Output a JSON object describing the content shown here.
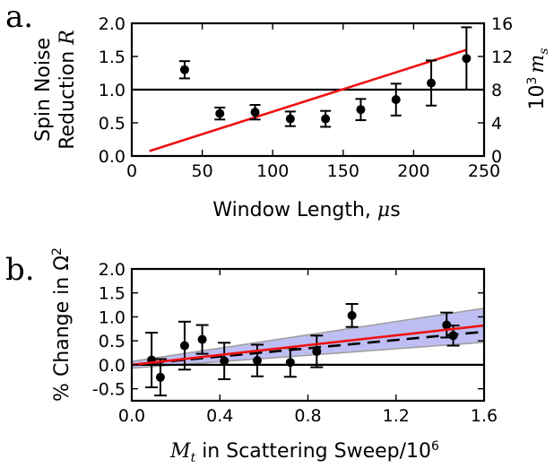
{
  "panels": {
    "a": {
      "panel_label": "a.",
      "ylabel_line1": "Spin Noise",
      "ylabel_line2_text": "Reduction ",
      "ylabel_line2_var": "R",
      "y2label_power": "10",
      "y2label_exp": "3",
      "y2label_var": "m",
      "y2label_sub": "s",
      "xlabel_text": "Window Length, ",
      "xlabel_mu": "μ",
      "xlabel_unit": "s"
    },
    "b": {
      "panel_label": "b.",
      "ylabel_text": "% Change in Ω",
      "ylabel_sup": "2",
      "xlabel_var": "M",
      "xlabel_sub": "t",
      "xlabel_text": " in Scattering Sweep/10",
      "xlabel_sup": "6"
    }
  },
  "colors": {
    "fit": "#ee1111",
    "band_fill": "#a8a8f0",
    "band_edge": "#a0a0a0",
    "points": "#000000"
  },
  "chart_data": [
    {
      "type": "scatter",
      "name": "a",
      "xlim": [
        0,
        250
      ],
      "ylim": [
        0,
        2.0
      ],
      "y2lim": [
        0,
        16
      ],
      "xticks": [
        0,
        50,
        100,
        150,
        200,
        250
      ],
      "yticks": [
        0.0,
        0.5,
        1.0,
        1.5,
        2.0
      ],
      "ytick_labels": [
        "0.0",
        "0.5",
        "1.0",
        "1.5",
        "2.0"
      ],
      "y2ticks": [
        0,
        4,
        8,
        12,
        16
      ],
      "points": [
        {
          "x": 37.5,
          "y": 1.3,
          "err": 0.13
        },
        {
          "x": 62.5,
          "y": 0.64,
          "err": 0.09
        },
        {
          "x": 87.5,
          "y": 0.66,
          "err": 0.11
        },
        {
          "x": 112.5,
          "y": 0.56,
          "err": 0.11
        },
        {
          "x": 137.5,
          "y": 0.56,
          "err": 0.12
        },
        {
          "x": 162.5,
          "y": 0.7,
          "err": 0.16
        },
        {
          "x": 187.5,
          "y": 0.85,
          "err": 0.24
        },
        {
          "x": 212.5,
          "y": 1.1,
          "err": 0.34
        },
        {
          "x": 237.5,
          "y": 1.47,
          "err": 0.47
        }
      ],
      "reference_line_y": 1.0,
      "fit_line_y2": {
        "x": [
          12.5,
          237.5
        ],
        "y": [
          0.6,
          12.8
        ]
      }
    },
    {
      "type": "scatter",
      "name": "b",
      "xlim": [
        0,
        1.6
      ],
      "ylim": [
        -0.75,
        2.0
      ],
      "xticks": [
        0,
        0.4,
        0.8,
        1.2,
        1.6
      ],
      "xtick_labels": [
        "0.0",
        "0.4",
        "0.8",
        "1.2",
        "1.6"
      ],
      "yticks": [
        -0.5,
        0,
        0.5,
        1.0,
        1.5,
        2.0
      ],
      "ytick_labels": [
        "-0.5",
        "0.0",
        "0.5",
        "1.0",
        "1.5",
        "2.0"
      ],
      "points": [
        {
          "x": 0.09,
          "y": 0.1,
          "err": 0.57
        },
        {
          "x": 0.13,
          "y": -0.26,
          "err": 0.38
        },
        {
          "x": 0.24,
          "y": 0.4,
          "err": 0.5
        },
        {
          "x": 0.32,
          "y": 0.53,
          "err": 0.3
        },
        {
          "x": 0.42,
          "y": 0.08,
          "err": 0.38
        },
        {
          "x": 0.57,
          "y": 0.09,
          "err": 0.33
        },
        {
          "x": 0.72,
          "y": 0.05,
          "err": 0.3
        },
        {
          "x": 0.84,
          "y": 0.28,
          "err": 0.33
        },
        {
          "x": 1.0,
          "y": 1.03,
          "err": 0.24
        },
        {
          "x": 1.43,
          "y": 0.83,
          "err": 0.26
        },
        {
          "x": 1.46,
          "y": 0.61,
          "err": 0.21
        }
      ],
      "reference_line_y": 0,
      "fit_line": {
        "x": [
          0,
          1.6
        ],
        "y": [
          0.0,
          0.82
        ]
      },
      "dashed_line": {
        "x": [
          0,
          1.6
        ],
        "y": [
          0.0,
          0.69
        ]
      },
      "band": {
        "x": [
          0,
          1.6
        ],
        "upper": [
          0.07,
          1.18
        ],
        "lower": [
          -0.07,
          0.47
        ]
      }
    }
  ]
}
